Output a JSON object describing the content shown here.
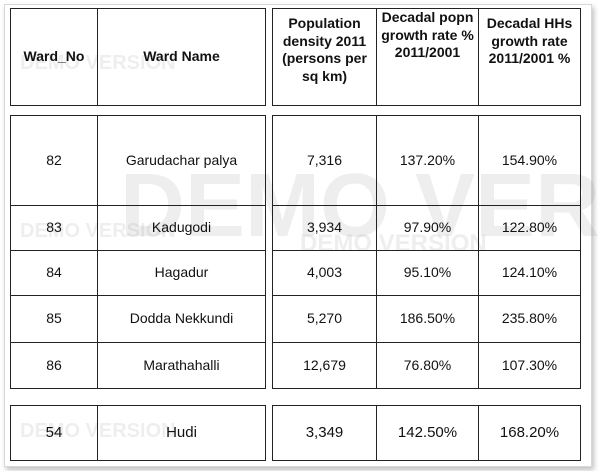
{
  "watermark": "DEMO VERSION",
  "table": {
    "header": [
      "Ward_No",
      "Ward Name",
      "Population density 2011 (persons per sq km)",
      "Decadal popn growth rate % 2011/2001",
      "Decadal HHs growth rate 2011/2001 %"
    ],
    "rows": [
      [
        "82",
        "Garudachar palya",
        "7,316",
        "137.20%",
        "154.90%"
      ],
      [
        "83",
        "Kadugodi",
        "3,934",
        "97.90%",
        "122.80%"
      ],
      [
        "84",
        "Hagadur",
        "4,003",
        "95.10%",
        "124.10%"
      ],
      [
        "85",
        "Dodda Nekkundi",
        "5,270",
        "186.50%",
        "235.80%"
      ],
      [
        "86",
        "Marathahalli",
        "12,679",
        "76.80%",
        "107.30%"
      ],
      [
        "54",
        "Hudi",
        "3,349",
        "142.50%",
        "168.20%"
      ]
    ]
  }
}
